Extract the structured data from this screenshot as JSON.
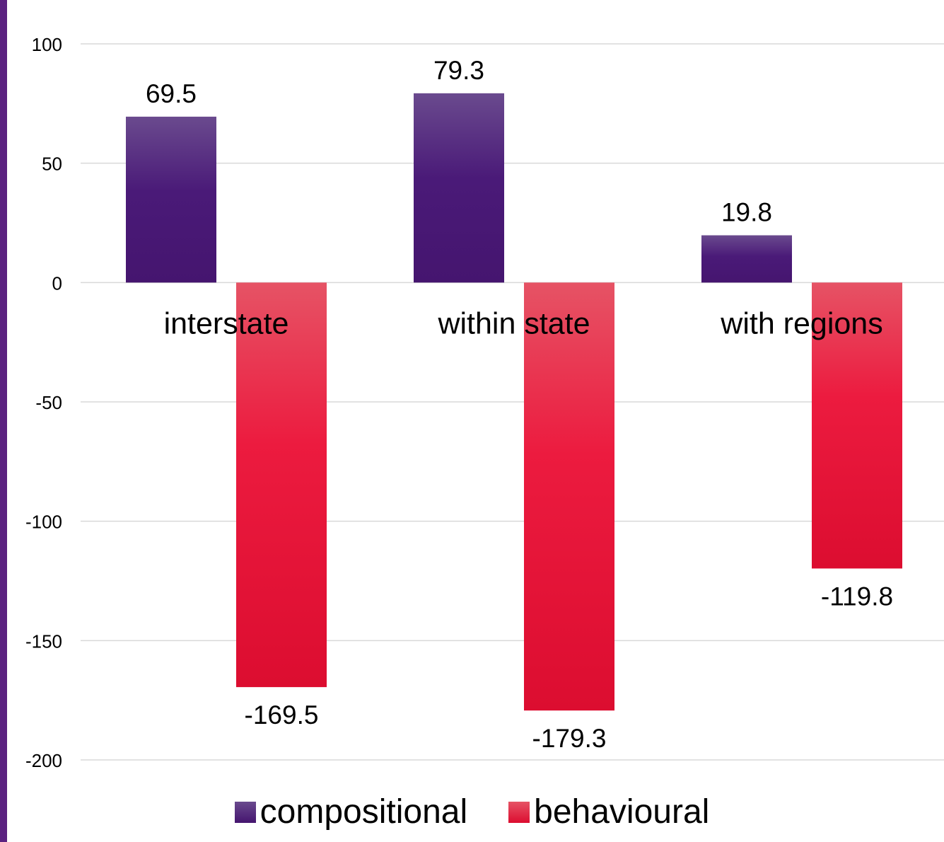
{
  "chart_data": {
    "type": "bar",
    "categories": [
      "interstate",
      "within state",
      "with regions"
    ],
    "series": [
      {
        "name": "compositional",
        "values": [
          69.5,
          79.3,
          19.8
        ],
        "color": "#4a1a78"
      },
      {
        "name": "behavioural",
        "values": [
          -169.5,
          -179.3,
          -119.8
        ],
        "color": "#e8173a"
      }
    ],
    "data_labels": {
      "compositional": [
        "69.5",
        "79.3",
        "19.8"
      ],
      "behavioural": [
        "-169.5",
        "-179.3",
        "-119.8"
      ]
    },
    "yticks": [
      "100",
      "50",
      "0",
      "-50",
      "-100",
      "-150",
      "-200"
    ],
    "ylim": [
      -200,
      100
    ],
    "grid": true,
    "legend_position": "bottom",
    "accent_color": "#5b2280"
  }
}
